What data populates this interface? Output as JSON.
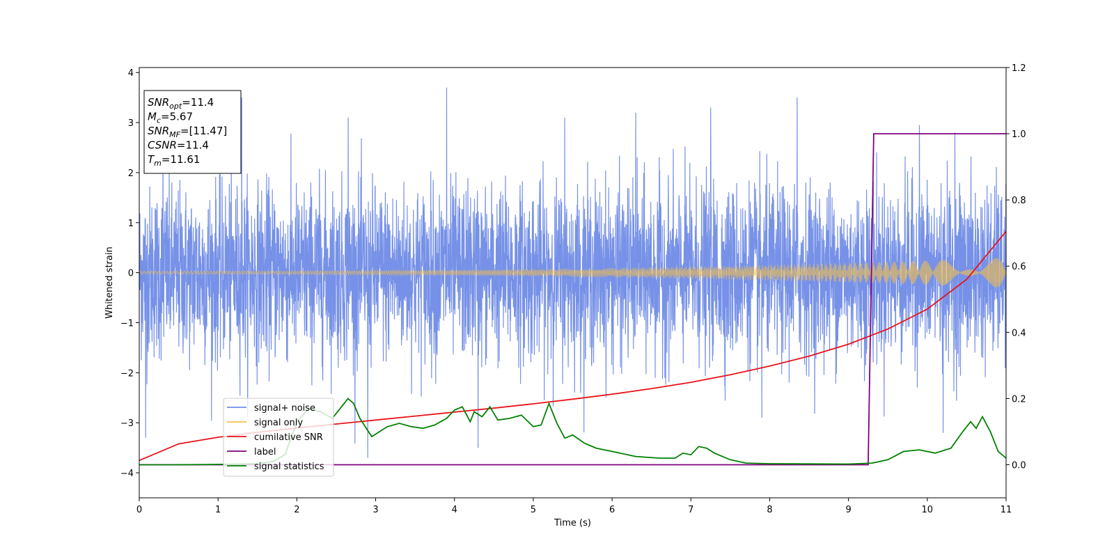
{
  "chart_data": {
    "type": "line",
    "xlabel": "Time (s)",
    "ylabel": "Whitened strain",
    "xlim": [
      0,
      11
    ],
    "ylim": [
      -4.5,
      4.1
    ],
    "y2lim": [
      -0.1,
      1.2
    ],
    "x_ticks": [
      0,
      1,
      2,
      3,
      4,
      5,
      6,
      7,
      8,
      9,
      10,
      11
    ],
    "y_ticks": [
      -4,
      -3,
      -2,
      -1,
      0,
      1,
      2,
      3,
      4
    ],
    "y2_ticks": [
      0.0,
      0.2,
      0.4,
      0.6,
      0.8,
      1.0,
      1.2
    ],
    "grid": false,
    "legend_position": "lower-left",
    "info_box": {
      "lines": [
        {
          "name": "SNR",
          "sub": "opt",
          "value": "=11.4"
        },
        {
          "name": "M",
          "sub": "c",
          "value": "=5.67"
        },
        {
          "name": "SNR",
          "sub": "MF",
          "value": "=[11.47]"
        },
        {
          "name": "CSNR",
          "sub": "",
          "value": "=11.4"
        },
        {
          "name": "T",
          "sub": "m",
          "value": "=11.61"
        }
      ]
    },
    "series": [
      {
        "name": "signal+ noise",
        "color": "#6f8be6",
        "axis": "left",
        "kind": "noise",
        "envelope_std": 0.85,
        "x_range": [
          0,
          11
        ],
        "peaks": [
          [
            0.08,
            -3.3
          ],
          [
            0.3,
            2.9
          ],
          [
            1.3,
            3.5
          ],
          [
            2.65,
            3.1
          ],
          [
            2.9,
            -3.7
          ],
          [
            3.9,
            3.7
          ],
          [
            4.3,
            -3.5
          ],
          [
            5.4,
            3.1
          ],
          [
            6.3,
            3.2
          ],
          [
            7.25,
            3.3
          ],
          [
            7.9,
            -2.9
          ],
          [
            8.35,
            3.5
          ],
          [
            9.9,
            2.95
          ],
          [
            10.2,
            -3.2
          ],
          [
            10.35,
            2.8
          ]
        ]
      },
      {
        "name": "signal only",
        "color": "#f5c04a",
        "axis": "left",
        "kind": "chirp",
        "amplitude_start": 0.03,
        "amplitude_end": 0.3,
        "x_range": [
          0,
          11
        ]
      },
      {
        "name": "cumilative SNR",
        "color": "#e8131a",
        "axis": "right",
        "x": [
          0,
          0.5,
          1,
          1.5,
          2,
          2.5,
          3,
          3.5,
          4,
          4.5,
          5,
          5.5,
          6,
          6.5,
          7,
          7.5,
          8,
          8.5,
          9,
          9.5,
          10,
          10.5,
          11
        ],
        "y": [
          0.013,
          0.063,
          0.083,
          0.098,
          0.111,
          0.123,
          0.135,
          0.147,
          0.159,
          0.171,
          0.184,
          0.198,
          0.213,
          0.23,
          0.249,
          0.272,
          0.298,
          0.328,
          0.364,
          0.41,
          0.47,
          0.56,
          0.705
        ]
      },
      {
        "name": "label",
        "color": "#800080",
        "axis": "right",
        "x": [
          0,
          9.25,
          9.32,
          11
        ],
        "y": [
          0,
          0,
          1.0,
          1.0
        ]
      },
      {
        "name": "signal statistics",
        "color": "#008000",
        "axis": "right",
        "x": [
          0,
          0.5,
          1,
          1.5,
          1.7,
          1.85,
          2.0,
          2.15,
          2.3,
          2.45,
          2.55,
          2.65,
          2.72,
          2.8,
          2.95,
          3.05,
          3.15,
          3.3,
          3.45,
          3.6,
          3.75,
          3.9,
          4.0,
          4.1,
          4.2,
          4.25,
          4.35,
          4.45,
          4.55,
          4.7,
          4.85,
          5.0,
          5.1,
          5.2,
          5.3,
          5.4,
          5.5,
          5.65,
          5.8,
          6.0,
          6.3,
          6.6,
          6.8,
          6.9,
          7.0,
          7.1,
          7.2,
          7.3,
          7.5,
          7.7,
          8.0,
          9.0,
          9.3,
          9.5,
          9.7,
          9.9,
          10.1,
          10.3,
          10.45,
          10.55,
          10.62,
          10.7,
          10.8,
          10.9,
          11.0
        ],
        "y": [
          0.0,
          0.0,
          0.001,
          0.003,
          0.01,
          0.03,
          0.13,
          0.17,
          0.16,
          0.14,
          0.17,
          0.2,
          0.185,
          0.14,
          0.085,
          0.1,
          0.115,
          0.125,
          0.115,
          0.11,
          0.12,
          0.14,
          0.165,
          0.175,
          0.13,
          0.16,
          0.145,
          0.175,
          0.135,
          0.14,
          0.15,
          0.115,
          0.12,
          0.185,
          0.125,
          0.08,
          0.09,
          0.065,
          0.05,
          0.04,
          0.025,
          0.02,
          0.02,
          0.035,
          0.03,
          0.055,
          0.05,
          0.035,
          0.015,
          0.005,
          0.003,
          0.002,
          0.005,
          0.015,
          0.04,
          0.045,
          0.035,
          0.05,
          0.1,
          0.13,
          0.11,
          0.145,
          0.1,
          0.04,
          0.02
        ]
      }
    ]
  }
}
